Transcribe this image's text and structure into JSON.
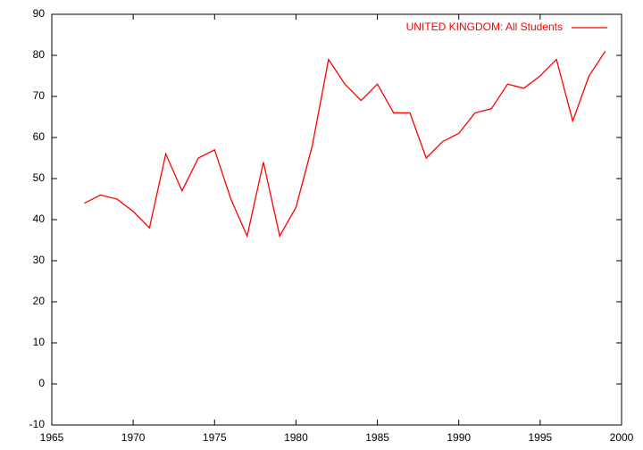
{
  "chart_data": {
    "type": "line",
    "x": [
      1967,
      1968,
      1969,
      1970,
      1971,
      1972,
      1973,
      1974,
      1975,
      1976,
      1977,
      1978,
      1979,
      1980,
      1981,
      1982,
      1983,
      1984,
      1985,
      1986,
      1987,
      1988,
      1989,
      1990,
      1991,
      1992,
      1993,
      1994,
      1995,
      1996,
      1997,
      1998,
      1999
    ],
    "series": [
      {
        "name": "UNITED KINGDOM: All Students",
        "color": "#ff0000",
        "values": [
          44,
          46,
          45,
          42,
          38,
          56,
          47,
          55,
          57,
          45,
          36,
          54,
          36,
          43,
          58,
          79,
          73,
          69,
          73,
          66,
          66,
          55,
          59,
          61,
          66,
          67,
          73,
          72,
          75,
          79,
          64,
          75,
          81
        ]
      }
    ],
    "xlim": [
      1965,
      2000
    ],
    "xticks": [
      1965,
      1970,
      1975,
      1980,
      1985,
      1990,
      1995,
      2000
    ],
    "ylim": [
      -10,
      90
    ],
    "yticks": [
      -10,
      0,
      10,
      20,
      30,
      40,
      50,
      60,
      70,
      80,
      90
    ],
    "grid": false,
    "legend": "top-right"
  }
}
